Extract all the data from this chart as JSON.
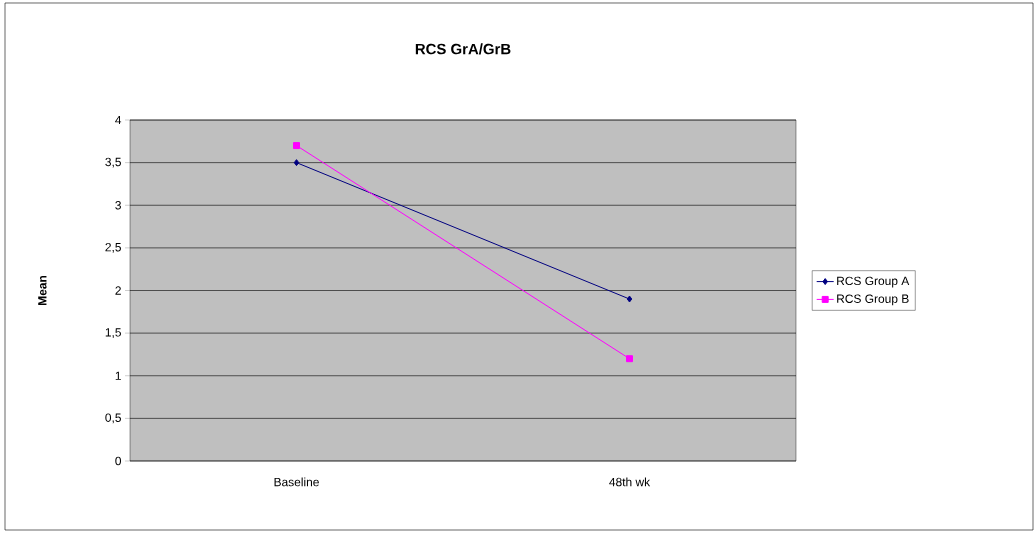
{
  "chart_data": {
    "type": "line",
    "title": "RCS GrA/GrB",
    "ylabel": "Mean",
    "categories": [
      "Baseline",
      "48th wk"
    ],
    "series": [
      {
        "name": "RCS Group A",
        "color": "#000080",
        "marker": "diamond",
        "values": [
          3.5,
          1.9
        ]
      },
      {
        "name": "RCS Group B",
        "color": "#ff00ff",
        "marker": "square",
        "values": [
          3.7,
          1.2
        ]
      }
    ],
    "ylim": [
      0,
      4
    ],
    "yticks": [
      0,
      {
        "value": 0.5,
        "label": "0,5"
      },
      1,
      {
        "value": 1.5,
        "label": "1,5"
      },
      2,
      {
        "value": 2.5,
        "label": "2,5"
      },
      3,
      {
        "value": 3.5,
        "label": "3,5"
      },
      4
    ],
    "grid": "y",
    "legend": "right",
    "line_style": "solid"
  }
}
